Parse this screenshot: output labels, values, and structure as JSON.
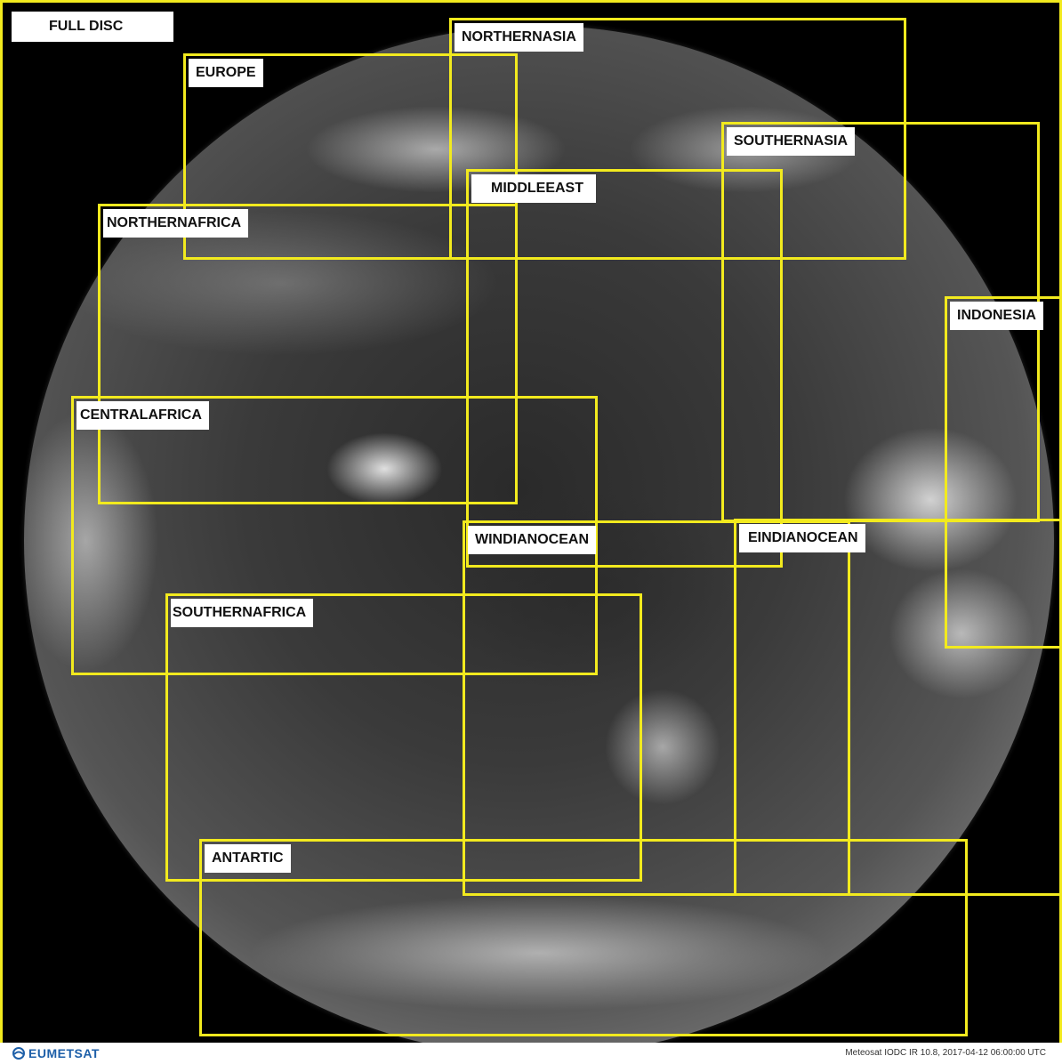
{
  "image": {
    "full_disc_label": "FULL DISC",
    "regions": [
      {
        "label": "NORTHERNASIA"
      },
      {
        "label": "EUROPE"
      },
      {
        "label": "SOUTHERNASIA"
      },
      {
        "label": "MIDDLEEAST"
      },
      {
        "label": "NORTHERNAFRICA"
      },
      {
        "label": "INDONESIA"
      },
      {
        "label": "CENTRALAFRICA"
      },
      {
        "label": "WINDIANOCEAN"
      },
      {
        "label": "EINDIANOCEAN"
      },
      {
        "label": "SOUTHERNAFRICA"
      },
      {
        "label": "ANTARTIC"
      }
    ],
    "box_color": "#f2ea1e"
  },
  "footer": {
    "logo_text": "EUMETSAT",
    "caption": "Meteosat IODC IR 10.8, 2017-04-12 06:00:00 UTC"
  }
}
